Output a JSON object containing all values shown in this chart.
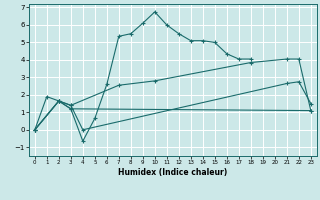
{
  "title": "",
  "xlabel": "Humidex (Indice chaleur)",
  "background_color": "#cce8e8",
  "grid_color": "#ffffff",
  "line_color": "#1a6b6b",
  "xlim": [
    -0.5,
    23.5
  ],
  "ylim": [
    -1.5,
    7.2
  ],
  "yticks": [
    -1,
    0,
    1,
    2,
    3,
    4,
    5,
    6,
    7
  ],
  "xticks": [
    0,
    1,
    2,
    3,
    4,
    5,
    6,
    7,
    8,
    9,
    10,
    11,
    12,
    13,
    14,
    15,
    16,
    17,
    18,
    19,
    20,
    21,
    22,
    23
  ],
  "series": [
    {
      "x": [
        0,
        1,
        2,
        3,
        4,
        5,
        6,
        7,
        8,
        9,
        10,
        11,
        12,
        13,
        14,
        15,
        16,
        17,
        18
      ],
      "y": [
        0.0,
        1.9,
        1.65,
        1.2,
        -0.65,
        0.65,
        2.6,
        5.35,
        5.5,
        6.1,
        6.75,
        6.0,
        5.5,
        5.1,
        5.1,
        5.0,
        4.35,
        4.05,
        4.05
      ]
    },
    {
      "x": [
        0,
        2,
        3,
        4,
        21,
        22,
        23
      ],
      "y": [
        0.0,
        1.65,
        1.4,
        0.0,
        2.65,
        2.75,
        1.5
      ]
    },
    {
      "x": [
        0,
        2,
        3,
        23
      ],
      "y": [
        0.0,
        1.65,
        1.2,
        1.1
      ]
    },
    {
      "x": [
        0,
        2,
        3,
        7,
        10,
        18,
        21,
        22,
        23
      ],
      "y": [
        0.0,
        1.65,
        1.4,
        2.55,
        2.8,
        3.85,
        4.05,
        4.05,
        1.1
      ]
    }
  ]
}
